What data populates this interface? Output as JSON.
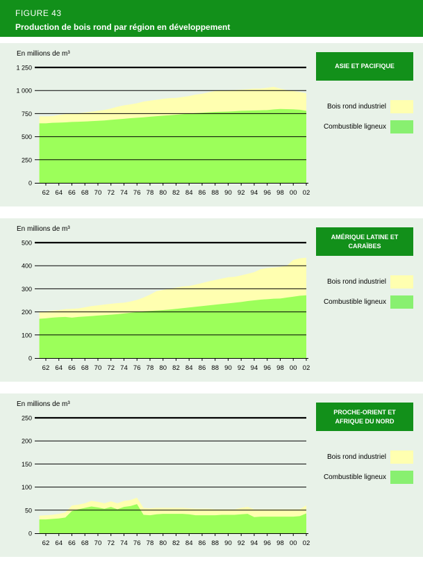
{
  "header": {
    "figure": "FIGURE 43",
    "title": "Production de bois rond par région en développement"
  },
  "legend": {
    "industrial": "Bois rond industriel",
    "fuel": "Combustible ligneux"
  },
  "colors": {
    "brand": "#12901a",
    "industrial": "#ffffb0",
    "fuel": "#9cff5a",
    "fuel_swatch": "#88f070",
    "panel": "#e8f2e8"
  },
  "chart_data": [
    {
      "type": "area",
      "region": "ASIE ET PACIFIQUE",
      "ylabel": "En millions de m³",
      "ylim": [
        0,
        1250
      ],
      "yticks": [
        "0",
        "250",
        "500",
        "750",
        "1 000",
        "1 250"
      ],
      "ytick_values": [
        0,
        250,
        500,
        750,
        1000,
        1250
      ],
      "x": [
        1961,
        1962,
        1963,
        1964,
        1965,
        1966,
        1967,
        1968,
        1969,
        1970,
        1971,
        1972,
        1973,
        1974,
        1975,
        1976,
        1977,
        1978,
        1979,
        1980,
        1981,
        1982,
        1983,
        1984,
        1985,
        1986,
        1987,
        1988,
        1989,
        1990,
        1991,
        1992,
        1993,
        1994,
        1995,
        1996,
        1997,
        1998,
        1999,
        2000,
        2001,
        2002
      ],
      "xticks": [
        "62",
        "64",
        "66",
        "68",
        "70",
        "72",
        "74",
        "76",
        "78",
        "80",
        "82",
        "84",
        "86",
        "88",
        "90",
        "92",
        "94",
        "96",
        "98",
        "00",
        "02"
      ],
      "series": [
        {
          "name": "Combustible ligneux",
          "values": [
            645,
            645,
            650,
            652,
            655,
            660,
            662,
            665,
            668,
            672,
            676,
            682,
            688,
            694,
            700,
            705,
            710,
            716,
            722,
            728,
            732,
            738,
            744,
            750,
            755,
            760,
            764,
            768,
            770,
            772,
            776,
            780,
            782,
            784,
            786,
            788,
            795,
            800,
            798,
            796,
            792,
            780
          ]
        },
        {
          "name": "Total (avec Bois rond industriel)",
          "values": [
            720,
            720,
            722,
            735,
            745,
            750,
            755,
            762,
            770,
            780,
            790,
            805,
            825,
            840,
            850,
            862,
            880,
            890,
            900,
            910,
            918,
            920,
            930,
            940,
            955,
            965,
            980,
            995,
            1000,
            1002,
            1005,
            1010,
            1015,
            1020,
            1020,
            1030,
            1040,
            1020,
            1005,
            995,
            985,
            970
          ]
        }
      ]
    },
    {
      "type": "area",
      "region": "AMÉRIQUE LATINE ET CARAÏBES",
      "ylabel": "En millions de m³",
      "ylim": [
        0,
        500
      ],
      "yticks": [
        "0",
        "100",
        "200",
        "300",
        "400",
        "500"
      ],
      "ytick_values": [
        0,
        100,
        200,
        300,
        400,
        500
      ],
      "x": [
        1961,
        1962,
        1963,
        1964,
        1965,
        1966,
        1967,
        1968,
        1969,
        1970,
        1971,
        1972,
        1973,
        1974,
        1975,
        1976,
        1977,
        1978,
        1979,
        1980,
        1981,
        1982,
        1983,
        1984,
        1985,
        1986,
        1987,
        1988,
        1989,
        1990,
        1991,
        1992,
        1993,
        1994,
        1995,
        1996,
        1997,
        1998,
        1999,
        2000,
        2001,
        2002
      ],
      "xticks": [
        "62",
        "64",
        "66",
        "68",
        "70",
        "72",
        "74",
        "76",
        "78",
        "80",
        "82",
        "84",
        "86",
        "88",
        "90",
        "92",
        "94",
        "96",
        "98",
        "00",
        "02"
      ],
      "series": [
        {
          "name": "Combustible ligneux",
          "values": [
            170,
            172,
            175,
            177,
            178,
            175,
            178,
            180,
            182,
            184,
            186,
            188,
            190,
            193,
            196,
            199,
            202,
            204,
            206,
            208,
            210,
            213,
            216,
            219,
            222,
            225,
            228,
            231,
            234,
            237,
            240,
            243,
            247,
            250,
            253,
            255,
            257,
            258,
            262,
            266,
            270,
            272
          ]
        },
        {
          "name": "Total (avec Bois rond industriel)",
          "values": [
            200,
            202,
            205,
            208,
            212,
            213,
            215,
            220,
            225,
            228,
            232,
            235,
            238,
            240,
            245,
            252,
            262,
            275,
            290,
            295,
            300,
            305,
            310,
            312,
            318,
            325,
            332,
            338,
            344,
            350,
            352,
            358,
            365,
            372,
            385,
            390,
            392,
            395,
            400,
            425,
            432,
            435
          ]
        }
      ]
    },
    {
      "type": "area",
      "region": "PROCHE-ORIENT ET AFRIQUE DU NORD",
      "ylabel": "En millions de m³",
      "ylim": [
        0,
        250
      ],
      "yticks": [
        "0",
        "50",
        "100",
        "150",
        "200",
        "250"
      ],
      "ytick_values": [
        0,
        50,
        100,
        150,
        200,
        250
      ],
      "x": [
        1961,
        1962,
        1963,
        1964,
        1965,
        1966,
        1967,
        1968,
        1969,
        1970,
        1971,
        1972,
        1973,
        1974,
        1975,
        1976,
        1977,
        1978,
        1979,
        1980,
        1981,
        1982,
        1983,
        1984,
        1985,
        1986,
        1987,
        1988,
        1989,
        1990,
        1991,
        1992,
        1993,
        1994,
        1995,
        1996,
        1997,
        1998,
        1999,
        2000,
        2001,
        2002
      ],
      "xticks": [
        "62",
        "64",
        "66",
        "68",
        "70",
        "72",
        "74",
        "76",
        "78",
        "80",
        "82",
        "84",
        "86",
        "88",
        "90",
        "92",
        "94",
        "96",
        "98",
        "00",
        "02"
      ],
      "series": [
        {
          "name": "Combustible ligneux",
          "values": [
            30,
            30,
            31,
            32,
            34,
            48,
            52,
            55,
            58,
            56,
            53,
            57,
            52,
            57,
            59,
            63,
            40,
            39,
            41,
            42,
            42,
            42,
            42,
            41,
            39,
            39,
            39,
            39,
            40,
            40,
            40,
            41,
            42,
            35,
            36,
            36,
            36,
            36,
            36,
            36,
            37,
            43
          ]
        },
        {
          "name": "Total (avec Bois rond industriel)",
          "values": [
            38,
            39,
            40,
            42,
            45,
            60,
            62,
            65,
            70,
            68,
            65,
            69,
            65,
            70,
            72,
            77,
            55,
            54,
            55,
            55,
            55,
            55,
            55,
            54,
            53,
            53,
            53,
            52,
            52,
            52,
            52,
            55,
            57,
            52,
            52,
            52,
            52,
            52,
            52,
            52,
            52,
            60
          ]
        }
      ]
    }
  ]
}
